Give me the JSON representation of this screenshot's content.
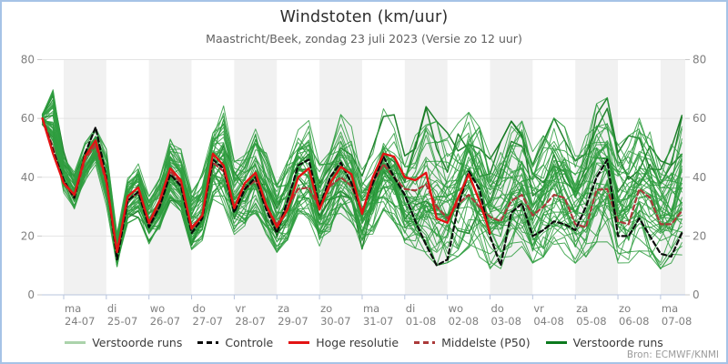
{
  "frame": {
    "title": "Windstoten (km/uur)",
    "subtitle": "Maastricht/Beek, zondag 23 juli 2023 (Versie zo 12 uur)",
    "source": "Bron: ECMWF/KNMI"
  },
  "legend": {
    "items": [
      {
        "label": "Verstoorde runs",
        "color": "#abd3ab",
        "style": "solid"
      },
      {
        "label": "Controle",
        "color": "#0a0a0a",
        "style": "dashed"
      },
      {
        "label": "Hoge resolutie",
        "color": "#e31313",
        "style": "solid"
      },
      {
        "label": "Middelste (P50)",
        "color": "#ab3a3a",
        "style": "dashed"
      },
      {
        "label": "Verstoorde runs",
        "color": "#0c7a1e",
        "style": "solid"
      }
    ]
  },
  "axes": {
    "y": {
      "min": 0,
      "max": 80,
      "ticks": [
        0,
        20,
        40,
        60,
        80
      ]
    },
    "x": {
      "labels": [
        {
          "day": "ma",
          "date": "24-07"
        },
        {
          "day": "di",
          "date": "25-07"
        },
        {
          "day": "wo",
          "date": "26-07"
        },
        {
          "day": "do",
          "date": "27-07"
        },
        {
          "day": "vr",
          "date": "28-07"
        },
        {
          "day": "za",
          "date": "29-07"
        },
        {
          "day": "zo",
          "date": "30-07"
        },
        {
          "day": "ma",
          "date": "31-07"
        },
        {
          "day": "di",
          "date": "01-08"
        },
        {
          "day": "wo",
          "date": "02-08"
        },
        {
          "day": "do",
          "date": "03-08"
        },
        {
          "day": "vr",
          "date": "04-08"
        },
        {
          "day": "za",
          "date": "05-08"
        },
        {
          "day": "zo",
          "date": "06-08"
        },
        {
          "day": "ma",
          "date": "07-08"
        }
      ]
    }
  },
  "chart_data": {
    "type": "line",
    "title": "Windstoten (km/uur)",
    "xlabel": "",
    "ylabel": "km/uur",
    "ylim": [
      0,
      80
    ],
    "grid": "horizontal",
    "shaded_days": "alternating, first day (ma 24-07) shaded",
    "x_start_day": -0.5,
    "x_step_days": 0.25,
    "n_points": 61,
    "series": [
      {
        "name": "Controle",
        "color": "#0a0a0a",
        "style": "dashed",
        "width": 2.2,
        "values": [
          60,
          49,
          39,
          33,
          48,
          57,
          40,
          12,
          32,
          35,
          23,
          30,
          41,
          37,
          21,
          26,
          46,
          43,
          28,
          36,
          40,
          29,
          21,
          32,
          44,
          46,
          30,
          40,
          45,
          38,
          28,
          38,
          47,
          40,
          34,
          25,
          17,
          10,
          12,
          30,
          42,
          36,
          20,
          10,
          28,
          31,
          20,
          22,
          25,
          24,
          22,
          30,
          40,
          46,
          20,
          20,
          26,
          20,
          14,
          13,
          21
        ]
      },
      {
        "name": "Hoge resolutie",
        "color": "#e31313",
        "style": "solid",
        "width": 2.4,
        "values": [
          60,
          48,
          38,
          34,
          47,
          52.5,
          39,
          14.5,
          33.5,
          36.5,
          24.5,
          32,
          43,
          39,
          22.5,
          27,
          48,
          44,
          29.5,
          38,
          41.5,
          30.5,
          23,
          29,
          40,
          43,
          29,
          38,
          43.5,
          41,
          27.5,
          40,
          48,
          47,
          40,
          39,
          41.5,
          26,
          24.5,
          33,
          41,
          32,
          21
        ]
      },
      {
        "name": "Middelste (P50)",
        "color": "#ab3a3a",
        "style": "dashed",
        "width": 2.2,
        "values": [
          60,
          50,
          38,
          33,
          46,
          51,
          38,
          15,
          32,
          35,
          24,
          30,
          42,
          38,
          23,
          27,
          45,
          42,
          30,
          36,
          39,
          30,
          24,
          30,
          36,
          36.5,
          29.5,
          37,
          40,
          37,
          28.5,
          38,
          44.5,
          40,
          36,
          35.5,
          37.5,
          30,
          26,
          31,
          34,
          30,
          26.5,
          25,
          32,
          34,
          27,
          30,
          34,
          33,
          24,
          23,
          35.7,
          36,
          25,
          24,
          36,
          33,
          24,
          24,
          28.5
        ]
      }
    ],
    "ensemble": {
      "name": "Verstoorde runs",
      "count": 50,
      "seed": 7,
      "color": "#2f9e3f",
      "dark_color": "#157a22",
      "min": [
        57,
        48,
        34,
        28,
        38,
        44,
        30,
        9,
        24,
        26,
        17,
        21,
        31,
        28,
        15,
        18,
        32,
        28,
        20,
        23,
        27,
        20,
        14,
        18,
        27,
        25,
        16,
        21,
        27,
        24,
        15,
        20,
        28,
        24,
        17,
        15,
        12,
        9,
        10,
        12,
        15,
        12,
        8,
        8,
        12,
        14,
        10,
        12,
        15,
        13,
        10,
        12,
        17,
        17,
        10,
        10,
        14,
        12,
        8,
        10,
        12
      ],
      "max": [
        63,
        74,
        49,
        42,
        52,
        57,
        50,
        22,
        40,
        45,
        34,
        40,
        54,
        50,
        36,
        42,
        58,
        65,
        46,
        48,
        57,
        50,
        38,
        46,
        58,
        60,
        45,
        52,
        62,
        58,
        45,
        53,
        64,
        62,
        52,
        56,
        66,
        60,
        56,
        60,
        63,
        58,
        48,
        53,
        60,
        60,
        50,
        55,
        61,
        58,
        48,
        55,
        66,
        68,
        52,
        55,
        61,
        58,
        48,
        52,
        62
      ]
    },
    "colors": {
      "band": "#f1f1f1",
      "grid": "#e4e4e4",
      "axis_line": "#b7c4dd",
      "tick": "#c9c9c9",
      "label": "#7f7f7f"
    }
  }
}
